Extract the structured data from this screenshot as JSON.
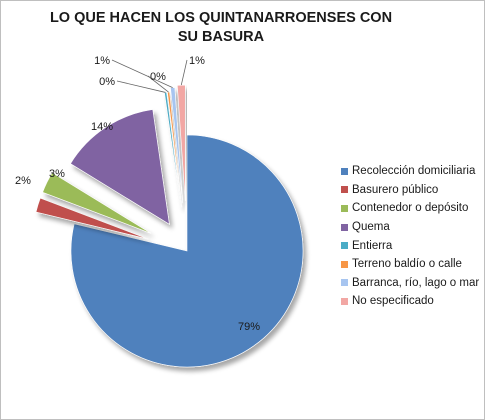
{
  "chart_data": {
    "type": "pie",
    "title": "LO QUE HACEN LOS QUINTANARROENSES CON SU BASURA",
    "exploded": true,
    "legend_position": "right",
    "slices": [
      {
        "name": "Recolección domiciliaria",
        "value": 79,
        "label": "79%",
        "color": "#4f81bd"
      },
      {
        "name": "Basurero público",
        "value": 2,
        "label": "2%",
        "color": "#c0504d"
      },
      {
        "name": "Contenedor o depósito",
        "value": 3,
        "label": "3%",
        "color": "#9bbb59"
      },
      {
        "name": "Quema",
        "value": 14,
        "label": "14%",
        "color": "#8064a2"
      },
      {
        "name": "Entierra",
        "value": 0.3,
        "label": "0%",
        "color": "#4bacc6"
      },
      {
        "name": "Terreno baldío o calle",
        "value": 0.3,
        "label": "0%",
        "color": "#f79646"
      },
      {
        "name": "Barranca, río, lago o mar",
        "value": 0.6,
        "label": "1%",
        "color": "#a7c5f0"
      },
      {
        "name": "No especificado",
        "value": 1.1,
        "label": "1%",
        "color": "#f2a7a4"
      }
    ]
  }
}
